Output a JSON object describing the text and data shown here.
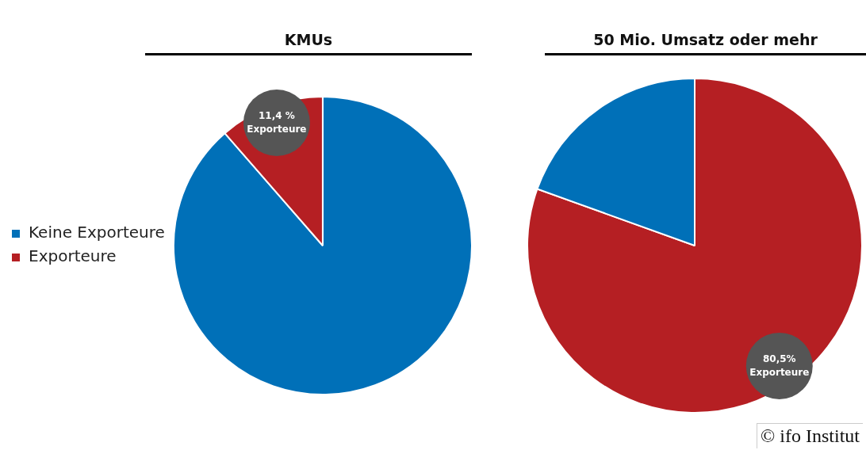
{
  "chart_data": [
    {
      "type": "pie",
      "title": "KMUs",
      "categories": [
        "Keine Exporteure",
        "Exporteure"
      ],
      "values": [
        88.6,
        11.4
      ],
      "colors": [
        "#0070b8",
        "#b51f23"
      ],
      "value_labels": [
        null,
        "11,4 %"
      ],
      "legend": "left"
    },
    {
      "type": "pie",
      "title": "50 Mio. Umsatz oder mehr",
      "categories": [
        "Exporteure",
        null
      ],
      "values": [
        80.5,
        19.5
      ],
      "colors": [
        "#b51f23",
        "#0070b8"
      ],
      "value_labels": [
        "80,5%",
        null
      ],
      "annotations": [
        "© ifo Institut"
      ]
    }
  ]
}
